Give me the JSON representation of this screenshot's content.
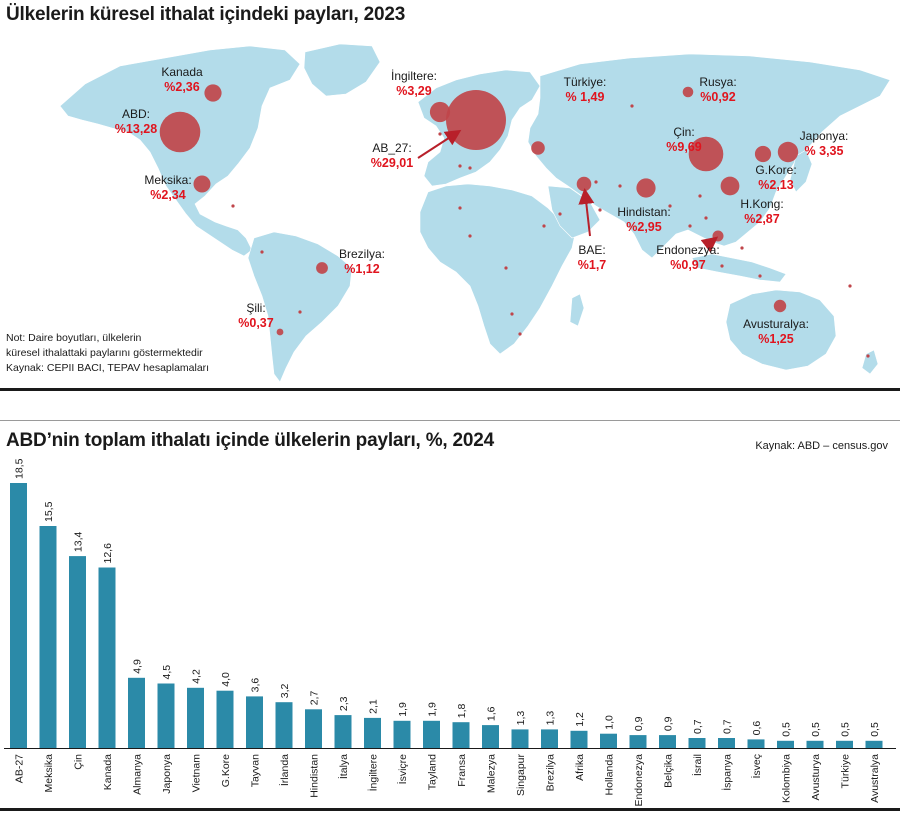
{
  "map": {
    "title": "Ülkelerin küresel ithalat içindeki payları, 2023",
    "notes": [
      "Not: Daire boyutları, ülkelerin",
      " küresel ithalattaki paylarını göstermektedir",
      "Kaynak: CEPII BACI, TEPAV hesaplamaları"
    ],
    "colors": {
      "land": "#b3dcea",
      "bubble": "#c0454a",
      "label_value": "#e0141e",
      "arrow": "#b8202a"
    },
    "countries": [
      {
        "name": "Kanada",
        "share": "%2,36",
        "value": 2.36
      },
      {
        "name": "ABD:",
        "share": "%13,28",
        "value": 13.28
      },
      {
        "name": "Meksika:",
        "share": "%2,34",
        "value": 2.34
      },
      {
        "name": "Brezilya:",
        "share": "%1,12",
        "value": 1.12
      },
      {
        "name": "Şili:",
        "share": "%0,37",
        "value": 0.37
      },
      {
        "name": "İngiltere:",
        "share": "%3,29",
        "value": 3.29
      },
      {
        "name": "AB_27:",
        "share": "%29,01",
        "value": 29.01
      },
      {
        "name": "Türkiye:",
        "share": "% 1,49",
        "value": 1.49
      },
      {
        "name": "Rusya:",
        "share": "%0,92",
        "value": 0.92
      },
      {
        "name": "Çin:",
        "share": "%9,69",
        "value": 9.69
      },
      {
        "name": "Japonya:",
        "share": "% 3,35",
        "value": 3.35
      },
      {
        "name": "G.Kore:",
        "share": "%2,13",
        "value": 2.13
      },
      {
        "name": "H.Kong:",
        "share": "%2,87",
        "value": 2.87
      },
      {
        "name": "Hindistan:",
        "share": "%2,95",
        "value": 2.95
      },
      {
        "name": "Endonezya:",
        "share": "%0,97",
        "value": 0.97
      },
      {
        "name": "BAE:",
        "share": "%1,7",
        "value": 1.7
      },
      {
        "name": "Avusturalya:",
        "share": "%1,25",
        "value": 1.25
      }
    ]
  },
  "chart_data": {
    "type": "bar",
    "title": "ABD’nin toplam ithalatı içinde ülkelerin payları, %, 2024",
    "source": "Kaynak: ABD – census.gov",
    "color": "#2b8aa8",
    "categories": [
      "AB-27",
      "Meksika",
      "Çin",
      "Kanada",
      "Almanya",
      "Japonya",
      "Vietnam",
      "G.Kore",
      "Tayvan",
      "İrlanda",
      "Hindistan",
      "İtalya",
      "İngiltere",
      "İsviçre",
      "Tayland",
      "Fransa",
      "Malezya",
      "Singapur",
      "Brezilya",
      "Afrika",
      "Hollanda",
      "Endonezya",
      "Belçika",
      "İsrail",
      "İspanya",
      "İsveç",
      "Kolombiya",
      "Avusturya",
      "Türkiye",
      "Avustralya"
    ],
    "values": [
      18.5,
      15.5,
      13.4,
      12.6,
      4.9,
      4.5,
      4.2,
      4.0,
      3.6,
      3.2,
      2.7,
      2.3,
      2.1,
      1.9,
      1.9,
      1.8,
      1.6,
      1.3,
      1.3,
      1.2,
      1.0,
      0.9,
      0.9,
      0.7,
      0.7,
      0.6,
      0.5,
      0.5,
      0.5,
      0.5
    ],
    "value_labels": [
      "18,5",
      "15,5",
      "13,4",
      "12,6",
      "4,9",
      "4,5",
      "4,2",
      "4,0",
      "3,6",
      "3,2",
      "2,7",
      "2,3",
      "2,1",
      "1,9",
      "1,9",
      "1,8",
      "1,6",
      "1,3",
      "1,3",
      "1,2",
      "1,0",
      "0,9",
      "0,9",
      "0,7",
      "0,7",
      "0,6",
      "0,5",
      "0,5",
      "0,5",
      "0,5"
    ],
    "ylim": [
      0,
      18.5
    ],
    "grid": false,
    "legend": "none"
  }
}
